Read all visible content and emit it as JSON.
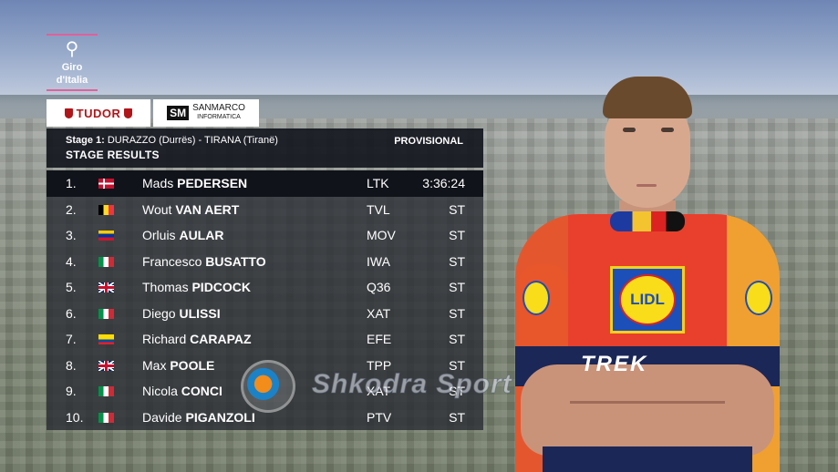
{
  "broadcast": {
    "logo_text": "Giro d'Italia",
    "sponsors": {
      "tudor": "TUDOR",
      "sanmarco_mark": "SM",
      "sanmarco_line1": "SANMARCO",
      "sanmarco_line2": "INFORMATICA"
    }
  },
  "panel": {
    "stage_label": "Stage 1:",
    "stage_route": "DURAZZO (Durrës) - TIRANA (Tiranë)",
    "status": "PROVISIONAL",
    "title": "STAGE RESULTS"
  },
  "results": [
    {
      "pos": "1.",
      "flag": "dk",
      "first": "Mads",
      "last": "PEDERSEN",
      "team": "LTK",
      "time": "3:36:24"
    },
    {
      "pos": "2.",
      "flag": "be",
      "first": "Wout",
      "last": "VAN AERT",
      "team": "TVL",
      "time": "ST"
    },
    {
      "pos": "3.",
      "flag": "ve",
      "first": "Orluis",
      "last": "AULAR",
      "team": "MOV",
      "time": "ST"
    },
    {
      "pos": "4.",
      "flag": "it",
      "first": "Francesco",
      "last": "BUSATTO",
      "team": "IWA",
      "time": "ST"
    },
    {
      "pos": "5.",
      "flag": "gb",
      "first": "Thomas",
      "last": "PIDCOCK",
      "team": "Q36",
      "time": "ST"
    },
    {
      "pos": "6.",
      "flag": "it",
      "first": "Diego",
      "last": "ULISSI",
      "team": "XAT",
      "time": "ST"
    },
    {
      "pos": "7.",
      "flag": "ec",
      "first": "Richard",
      "last": "CARAPAZ",
      "team": "EFE",
      "time": "ST"
    },
    {
      "pos": "8.",
      "flag": "gb",
      "first": "Max",
      "last": "POOLE",
      "team": "TPP",
      "time": "ST"
    },
    {
      "pos": "9.",
      "flag": "it",
      "first": "Nicola",
      "last": "CONCI",
      "team": "XAT",
      "time": "ST"
    },
    {
      "pos": "10.",
      "flag": "it",
      "first": "Davide",
      "last": "PIGANZOLI",
      "team": "PTV",
      "time": "ST"
    }
  ],
  "watermark": {
    "text": "Shkodra Sport"
  },
  "rider": {
    "jersey_brand": "LIDL",
    "jersey_sponsor": "TREK"
  },
  "colors": {
    "panel_bg": "#14161e",
    "logo_accent": "#e0609a",
    "tudor_red": "#b0151a"
  }
}
